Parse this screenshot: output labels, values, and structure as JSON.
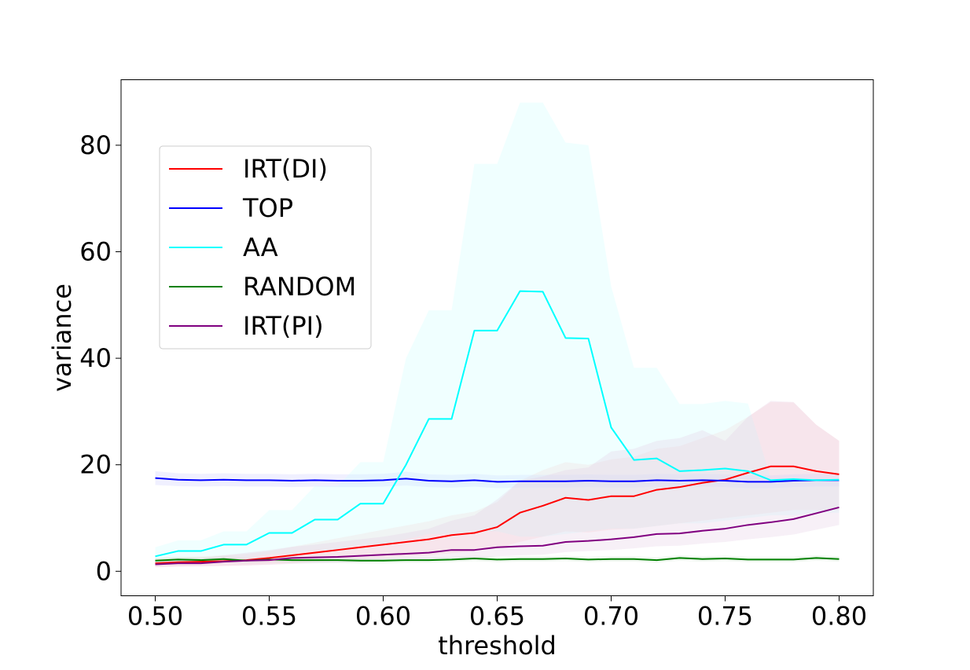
{
  "chart_data": {
    "type": "line",
    "title": "",
    "xlabel": "threshold",
    "ylabel": "variance",
    "xlim": [
      0.485,
      0.815
    ],
    "ylim": [
      -4.6,
      92.3
    ],
    "xticks": [
      0.5,
      0.55,
      0.6,
      0.65,
      0.7,
      0.75,
      0.8
    ],
    "xtick_labels": [
      "0.50",
      "0.55",
      "0.60",
      "0.65",
      "0.70",
      "0.75",
      "0.80"
    ],
    "yticks": [
      0,
      20,
      40,
      60,
      80
    ],
    "ytick_labels": [
      "0",
      "20",
      "40",
      "60",
      "80"
    ],
    "grid": false,
    "legend_position": "upper-left",
    "x": [
      0.5,
      0.51,
      0.52,
      0.53,
      0.54,
      0.55,
      0.56,
      0.57,
      0.58,
      0.59,
      0.6,
      0.61,
      0.62,
      0.63,
      0.64,
      0.65,
      0.66,
      0.67,
      0.68,
      0.69,
      0.7,
      0.71,
      0.72,
      0.73,
      0.74,
      0.75,
      0.76,
      0.77,
      0.78,
      0.79,
      0.8
    ],
    "series": [
      {
        "name": "IRT(DI)",
        "color": "#ff0000",
        "band_color": "#ffcccc",
        "values": [
          1.5,
          1.7,
          1.8,
          1.9,
          2.1,
          2.5,
          3.0,
          3.5,
          4.0,
          4.5,
          5.0,
          5.5,
          6.0,
          6.8,
          7.2,
          8.3,
          11.0,
          12.3,
          13.8,
          13.4,
          14.1,
          14.1,
          15.3,
          15.8,
          16.6,
          17.2,
          18.5,
          19.7,
          19.7,
          18.8,
          18.2
        ],
        "lower": [
          0.8,
          0.9,
          1.0,
          1.0,
          1.1,
          1.3,
          1.5,
          1.8,
          2.0,
          2.3,
          2.5,
          2.8,
          3.0,
          3.4,
          3.8,
          4.3,
          5.5,
          6.5,
          7.5,
          7.3,
          7.8,
          8.0,
          8.5,
          9.0,
          9.5,
          10.0,
          10.5,
          11.0,
          11.5,
          11.5,
          11.5
        ],
        "upper": [
          2.4,
          2.6,
          2.8,
          3.0,
          3.3,
          3.8,
          4.6,
          5.4,
          6.2,
          7.0,
          7.8,
          8.6,
          9.4,
          10.5,
          11.2,
          13.0,
          17.0,
          19.0,
          20.5,
          20.0,
          21.0,
          21.5,
          23.0,
          23.5,
          25.0,
          26.5,
          29.0,
          31.8,
          31.7,
          27.5,
          24.5
        ]
      },
      {
        "name": "TOP",
        "color": "#0000ff",
        "band_color": "#ccccff",
        "values": [
          17.5,
          17.2,
          17.1,
          17.2,
          17.1,
          17.1,
          17.0,
          17.1,
          17.0,
          17.0,
          17.1,
          17.4,
          17.0,
          16.9,
          17.1,
          16.8,
          16.9,
          16.9,
          16.9,
          17.0,
          16.9,
          16.9,
          17.1,
          17.0,
          17.1,
          17.0,
          16.8,
          16.8,
          17.0,
          17.1,
          17.1
        ],
        "lower": [
          16.2,
          16.0,
          15.9,
          16.0,
          15.9,
          15.9,
          15.8,
          15.9,
          15.8,
          15.8,
          15.9,
          16.1,
          15.8,
          15.7,
          15.9,
          15.6,
          15.7,
          15.7,
          15.7,
          15.8,
          15.7,
          15.7,
          15.9,
          15.8,
          15.9,
          15.8,
          15.6,
          15.6,
          15.8,
          15.9,
          15.9
        ],
        "upper": [
          18.8,
          18.4,
          18.3,
          18.4,
          18.3,
          18.3,
          18.2,
          18.3,
          18.2,
          18.2,
          18.3,
          18.7,
          18.2,
          18.1,
          18.3,
          18.0,
          18.1,
          18.1,
          18.1,
          18.2,
          18.1,
          18.1,
          18.3,
          18.2,
          18.3,
          18.2,
          18.0,
          18.0,
          18.2,
          18.3,
          18.3
        ]
      },
      {
        "name": "AA",
        "color": "#00ffff",
        "band_color": "#ccffff",
        "values": [
          2.8,
          3.8,
          3.8,
          5.0,
          5.0,
          7.2,
          7.2,
          9.7,
          9.7,
          12.7,
          12.7,
          20.0,
          28.6,
          28.6,
          45.2,
          45.2,
          52.6,
          52.5,
          43.8,
          43.7,
          27.0,
          20.9,
          21.2,
          18.8,
          19.0,
          19.3,
          18.8,
          17.1,
          17.3,
          17.1,
          17.2
        ],
        "lower": [
          1.5,
          2.0,
          2.0,
          2.5,
          2.5,
          3.2,
          3.2,
          4.0,
          4.0,
          5.0,
          5.0,
          6.0,
          7.0,
          7.0,
          7.5,
          7.5,
          6.5,
          6.5,
          7.0,
          7.5,
          8.0,
          8.0,
          8.5,
          9.0,
          9.0,
          9.5,
          10.0,
          10.5,
          10.5,
          11.0,
          11.0
        ],
        "upper": [
          4.5,
          5.8,
          5.8,
          7.5,
          7.5,
          11.5,
          11.5,
          16.0,
          16.0,
          20.5,
          20.5,
          40.0,
          49.0,
          49.0,
          76.5,
          76.5,
          88.0,
          88.0,
          80.5,
          80.0,
          53.5,
          38.2,
          38.2,
          31.4,
          31.4,
          32.0,
          31.5,
          17.5,
          17.5,
          17.3,
          17.3
        ]
      },
      {
        "name": "RANDOM",
        "color": "#008000",
        "band_color": "#cce6cc",
        "values": [
          2.0,
          2.2,
          2.1,
          2.3,
          2.0,
          2.2,
          2.1,
          2.1,
          2.1,
          2.0,
          2.0,
          2.1,
          2.1,
          2.2,
          2.4,
          2.2,
          2.3,
          2.3,
          2.4,
          2.2,
          2.3,
          2.3,
          2.1,
          2.5,
          2.3,
          2.4,
          2.2,
          2.2,
          2.2,
          2.5,
          2.3
        ],
        "lower": [
          1.5,
          1.7,
          1.6,
          1.8,
          1.5,
          1.7,
          1.6,
          1.6,
          1.6,
          1.5,
          1.5,
          1.6,
          1.6,
          1.7,
          1.9,
          1.7,
          1.8,
          1.8,
          1.9,
          1.7,
          1.8,
          1.8,
          1.6,
          2.0,
          1.8,
          1.9,
          1.7,
          1.7,
          1.7,
          2.0,
          1.8
        ],
        "upper": [
          2.5,
          2.7,
          2.6,
          2.8,
          2.5,
          2.7,
          2.6,
          2.6,
          2.6,
          2.5,
          2.5,
          2.6,
          2.6,
          2.7,
          2.9,
          2.7,
          2.8,
          2.8,
          2.9,
          2.7,
          2.8,
          2.8,
          2.6,
          3.0,
          2.8,
          2.9,
          2.7,
          2.7,
          2.7,
          3.0,
          2.8
        ]
      },
      {
        "name": "IRT(PI)",
        "color": "#800080",
        "band_color": "#e6cce6",
        "values": [
          1.3,
          1.5,
          1.5,
          1.8,
          2.0,
          2.1,
          2.5,
          2.6,
          2.7,
          2.9,
          3.1,
          3.3,
          3.5,
          4.0,
          4.0,
          4.5,
          4.7,
          4.8,
          5.5,
          5.7,
          6.0,
          6.4,
          7.0,
          7.1,
          7.6,
          8.0,
          8.7,
          9.2,
          9.8,
          10.9,
          12.0
        ],
        "lower": [
          0.8,
          0.9,
          0.9,
          1.0,
          1.1,
          1.2,
          1.4,
          1.5,
          1.6,
          1.7,
          1.9,
          2.0,
          2.2,
          2.5,
          2.5,
          2.8,
          3.0,
          3.1,
          3.6,
          3.8,
          4.0,
          4.3,
          4.7,
          4.8,
          5.2,
          5.5,
          6.0,
          6.4,
          6.9,
          7.8,
          8.7
        ],
        "upper": [
          2.0,
          2.3,
          2.4,
          3.0,
          3.5,
          4.0,
          4.6,
          5.0,
          5.5,
          6.0,
          6.5,
          7.2,
          8.0,
          9.5,
          10.5,
          13.5,
          17.0,
          17.8,
          19.0,
          19.5,
          22.5,
          23.0,
          24.5,
          25.0,
          26.5,
          24.5,
          29.0,
          32.0,
          31.8,
          27.5,
          24.5
        ]
      }
    ]
  }
}
